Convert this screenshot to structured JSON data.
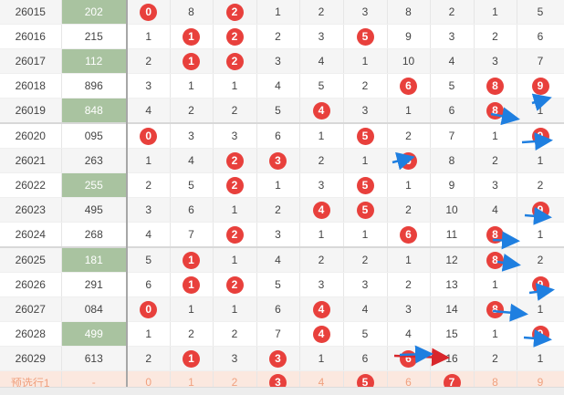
{
  "rows": [
    {
      "issue": "26015",
      "num": "202",
      "hl": true,
      "cells": [
        "0",
        "8",
        "2",
        "1",
        "2",
        "3",
        "8",
        "2",
        "1",
        "5"
      ],
      "balls": [
        0,
        2
      ]
    },
    {
      "issue": "26016",
      "num": "215",
      "hl": false,
      "cells": [
        "1",
        "1",
        "2",
        "2",
        "3",
        "5",
        "9",
        "3",
        "2",
        "6"
      ],
      "balls": [
        1,
        2,
        5
      ]
    },
    {
      "issue": "26017",
      "num": "112",
      "hl": true,
      "cells": [
        "2",
        "1",
        "2",
        "3",
        "4",
        "1",
        "10",
        "4",
        "3",
        "7"
      ],
      "balls": [
        1,
        2
      ]
    },
    {
      "issue": "26018",
      "num": "896",
      "hl": false,
      "cells": [
        "3",
        "1",
        "1",
        "4",
        "5",
        "2",
        "6",
        "5",
        "8",
        "9"
      ],
      "balls": [
        6,
        8,
        9
      ]
    },
    {
      "issue": "26019",
      "num": "848",
      "hl": true,
      "cells": [
        "4",
        "2",
        "2",
        "5",
        "4",
        "3",
        "1",
        "6",
        "8",
        "1"
      ],
      "balls": [
        4,
        8
      ]
    },
    {
      "issue": "26020",
      "num": "095",
      "hl": false,
      "cells": [
        "0",
        "3",
        "3",
        "6",
        "1",
        "5",
        "2",
        "7",
        "1",
        "9"
      ],
      "balls": [
        0,
        5,
        9
      ]
    },
    {
      "issue": "26021",
      "num": "263",
      "hl": false,
      "cells": [
        "1",
        "4",
        "2",
        "3",
        "2",
        "1",
        "6",
        "8",
        "2",
        "1"
      ],
      "balls": [
        2,
        3,
        6
      ]
    },
    {
      "issue": "26022",
      "num": "255",
      "hl": true,
      "cells": [
        "2",
        "5",
        "2",
        "1",
        "3",
        "5",
        "1",
        "9",
        "3",
        "2"
      ],
      "balls": [
        2,
        5
      ]
    },
    {
      "issue": "26023",
      "num": "495",
      "hl": false,
      "cells": [
        "3",
        "6",
        "1",
        "2",
        "4",
        "5",
        "2",
        "10",
        "4",
        "9"
      ],
      "balls": [
        4,
        5,
        9
      ]
    },
    {
      "issue": "26024",
      "num": "268",
      "hl": false,
      "cells": [
        "4",
        "7",
        "2",
        "3",
        "1",
        "1",
        "6",
        "11",
        "8",
        "1"
      ],
      "balls": [
        2,
        6,
        8
      ]
    },
    {
      "issue": "26025",
      "num": "181",
      "hl": true,
      "cells": [
        "5",
        "1",
        "1",
        "4",
        "2",
        "2",
        "1",
        "12",
        "8",
        "2"
      ],
      "balls": [
        1,
        8
      ]
    },
    {
      "issue": "26026",
      "num": "291",
      "hl": false,
      "cells": [
        "6",
        "1",
        "2",
        "5",
        "3",
        "3",
        "2",
        "13",
        "1",
        "9"
      ],
      "balls": [
        1,
        2,
        9
      ]
    },
    {
      "issue": "26027",
      "num": "084",
      "hl": false,
      "cells": [
        "0",
        "1",
        "1",
        "6",
        "4",
        "4",
        "3",
        "14",
        "8",
        "1"
      ],
      "balls": [
        0,
        4,
        8
      ]
    },
    {
      "issue": "26028",
      "num": "499",
      "hl": true,
      "cells": [
        "1",
        "2",
        "2",
        "7",
        "4",
        "5",
        "4",
        "15",
        "1",
        "9"
      ],
      "balls": [
        4,
        9
      ]
    },
    {
      "issue": "26029",
      "num": "613",
      "hl": false,
      "cells": [
        "2",
        "1",
        "3",
        "3",
        "1",
        "6",
        "6",
        "16",
        "2",
        "1"
      ],
      "balls": [
        1,
        3,
        6
      ]
    }
  ],
  "predict": {
    "label": "预选行1",
    "num": "-",
    "cells": [
      "0",
      "1",
      "2",
      "3",
      "4",
      "5",
      "6",
      "7",
      "8",
      "9"
    ],
    "balls": [
      3,
      5,
      7
    ]
  },
  "colors": {
    "ball": "#e8403c",
    "highlight": "#a9c3a0",
    "arrow_blue": "#1f7fe0",
    "arrow_red": "#d8262b",
    "predict_bg": "#fbe8df",
    "predict_text": "#f0a07e"
  },
  "icons": {
    "arrow": "trend-arrow-icon"
  }
}
